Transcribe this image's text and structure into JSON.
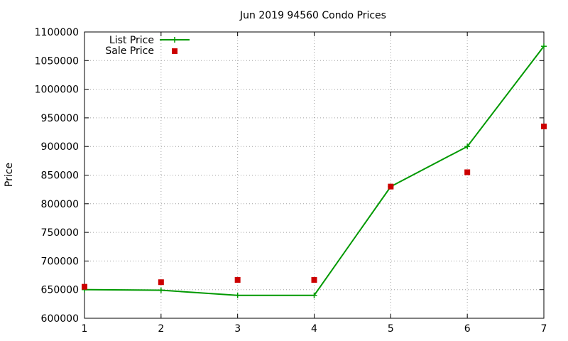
{
  "chart_data": {
    "type": "line",
    "title": "Jun 2019 94560 Condo Prices",
    "xlabel": "",
    "ylabel": "Price",
    "xlim": [
      1,
      7
    ],
    "ylim": [
      600000,
      1100000
    ],
    "x_ticks": [
      "1",
      "2",
      "3",
      "4",
      "5",
      "6",
      "7"
    ],
    "y_ticks": [
      "600000",
      "650000",
      "700000",
      "750000",
      "800000",
      "850000",
      "900000",
      "950000",
      "1000000",
      "1050000",
      "1100000"
    ],
    "grid": true,
    "legend_position": "top-left",
    "x": [
      1,
      2,
      3,
      4,
      5,
      6,
      7
    ],
    "series": [
      {
        "name": "List Price",
        "style": "line+cross",
        "color": "#009900",
        "values": [
          650000,
          649000,
          640000,
          640000,
          830000,
          900000,
          1075000
        ]
      },
      {
        "name": "Sale Price",
        "style": "square-points",
        "color": "#cc0000",
        "values": [
          655000,
          663000,
          667000,
          667000,
          830000,
          855000,
          935000
        ]
      }
    ]
  }
}
